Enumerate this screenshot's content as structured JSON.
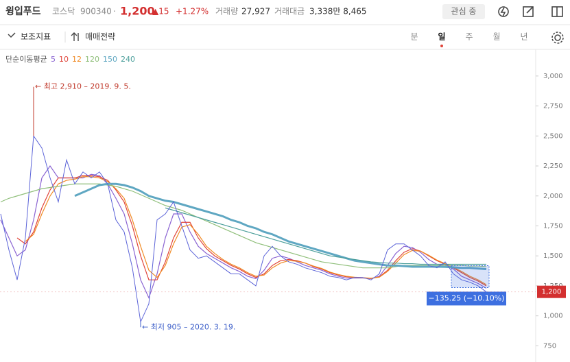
{
  "header": {
    "name": "윙입푸드",
    "market": "코스닥",
    "code": "900340",
    "sep": "·",
    "price": "1,200",
    "change": "▲15",
    "change_pct": "+1.27%",
    "volume_label": "거래량",
    "volume": "27,927",
    "amount_label": "거래대금",
    "amount": "3,338만 8,465",
    "watch_button": "관심 중"
  },
  "toolbar": {
    "indicators": "보조지표",
    "strategy": "매매전략",
    "periods": [
      "분",
      "일",
      "주",
      "월",
      "년"
    ],
    "selected_period": 1
  },
  "chart_data": {
    "type": "line",
    "legend_title": "단순이동평균",
    "categories": [
      null,
      null,
      null,
      null,
      null,
      null,
      null,
      null,
      null,
      null,
      null,
      null,
      null,
      null,
      null,
      null,
      null,
      null,
      null,
      null,
      null,
      null,
      null,
      null,
      null,
      null,
      null,
      null,
      null,
      null,
      null,
      null,
      null,
      null,
      null,
      null,
      null,
      null,
      null,
      null,
      null,
      null,
      null,
      null,
      null,
      null,
      null,
      null,
      null,
      null,
      null,
      null,
      null,
      null,
      null,
      null,
      null,
      null,
      null,
      null
    ],
    "values": [
      1850,
      1550,
      1300,
      1650,
      2500,
      2400,
      2150,
      1950,
      2300,
      2100,
      2200,
      2150,
      2200,
      2100,
      1800,
      1700,
      1400,
      950,
      1100,
      1800,
      1850,
      1950,
      1750,
      1550,
      1480,
      1500,
      1450,
      1400,
      1350,
      1350,
      1300,
      1250,
      1500,
      1580,
      1500,
      1450,
      1430,
      1400,
      1380,
      1360,
      1330,
      1320,
      1300,
      1320,
      1320,
      1300,
      1350,
      1550,
      1600,
      1600,
      1550,
      1500,
      1420,
      1400,
      1450,
      1350,
      1300,
      1280,
      1250,
      1200
    ],
    "color": "#5b63d8",
    "series": [
      {
        "name": "5",
        "color": "#8a63d2",
        "values": [
          1800,
          1650,
          1500,
          1550,
          1800,
          2150,
          2250,
          2150,
          2150,
          2150,
          2150,
          2180,
          2170,
          2100,
          1980,
          1850,
          1600,
          1300,
          1150,
          1350,
          1650,
          1850,
          1850,
          1700,
          1580,
          1520,
          1480,
          1440,
          1400,
          1370,
          1330,
          1310,
          1380,
          1480,
          1500,
          1480,
          1450,
          1420,
          1400,
          1380,
          1350,
          1330,
          1315,
          1315,
          1315,
          1310,
          1330,
          1420,
          1520,
          1580,
          1570,
          1530,
          1470,
          1430,
          1420,
          1390,
          1330,
          1300,
          1270,
          1230
        ]
      },
      {
        "name": "10",
        "color": "#e0443a",
        "values": [
          null,
          null,
          1650,
          1600,
          1700,
          1900,
          2050,
          2150,
          2150,
          2150,
          2170,
          2170,
          2160,
          2130,
          2050,
          1950,
          1750,
          1500,
          1300,
          1300,
          1450,
          1650,
          1780,
          1780,
          1650,
          1560,
          1500,
          1460,
          1420,
          1390,
          1350,
          1320,
          1350,
          1420,
          1460,
          1470,
          1460,
          1440,
          1410,
          1390,
          1360,
          1340,
          1325,
          1320,
          1318,
          1312,
          1325,
          1380,
          1460,
          1530,
          1560,
          1540,
          1500,
          1460,
          1430,
          1400,
          1360,
          1320,
          1290,
          1250
        ]
      },
      {
        "name": "12",
        "color": "#f08a24",
        "values": [
          null,
          null,
          null,
          1620,
          1680,
          1850,
          2000,
          2100,
          2130,
          2140,
          2160,
          2160,
          2150,
          2120,
          2060,
          1980,
          1800,
          1580,
          1380,
          1320,
          1420,
          1600,
          1740,
          1760,
          1680,
          1580,
          1520,
          1470,
          1430,
          1400,
          1360,
          1330,
          1340,
          1400,
          1440,
          1460,
          1455,
          1440,
          1415,
          1395,
          1365,
          1345,
          1330,
          1322,
          1318,
          1314,
          1322,
          1370,
          1440,
          1510,
          1545,
          1540,
          1505,
          1465,
          1435,
          1405,
          1370,
          1330,
          1300,
          1260
        ]
      },
      {
        "name": "120",
        "color": "#8fbf7a",
        "values": [
          1950,
          1980,
          2000,
          2020,
          2040,
          2060,
          2070,
          2080,
          2090,
          2100,
          2100,
          2100,
          2100,
          2090,
          2080,
          2060,
          2040,
          2010,
          1980,
          1950,
          1920,
          1900,
          1880,
          1850,
          1820,
          1790,
          1760,
          1730,
          1700,
          1670,
          1640,
          1610,
          1590,
          1570,
          1550,
          1530,
          1510,
          1490,
          1470,
          1450,
          1440,
          1430,
          1420,
          1410,
          1400,
          1400,
          1400,
          1400,
          1410,
          1420,
          1420,
          1420,
          1420,
          1420,
          1420,
          1420,
          1420,
          1415,
          1415,
          1410
        ]
      },
      {
        "name": "150",
        "color": "#5fa7c2",
        "values": [
          null,
          null,
          null,
          null,
          null,
          null,
          null,
          null,
          null,
          2000,
          2030,
          2060,
          2090,
          2100,
          2100,
          2090,
          2070,
          2040,
          2000,
          1980,
          1960,
          1950,
          1930,
          1910,
          1890,
          1870,
          1850,
          1830,
          1800,
          1780,
          1750,
          1730,
          1700,
          1680,
          1650,
          1620,
          1600,
          1580,
          1560,
          1540,
          1520,
          1500,
          1480,
          1460,
          1450,
          1440,
          1430,
          1420,
          1420,
          1415,
          1410,
          1410,
          1410,
          1410,
          1408,
          1405,
          1400,
          1400,
          1395,
          1390
        ]
      },
      {
        "name": "240",
        "color": "#4a9e9a",
        "values": [
          null,
          null,
          null,
          null,
          null,
          null,
          null,
          null,
          null,
          null,
          null,
          null,
          null,
          null,
          null,
          null,
          null,
          null,
          null,
          null,
          1900,
          1880,
          1860,
          1840,
          1820,
          1800,
          1780,
          1760,
          1740,
          1720,
          1700,
          1680,
          1660,
          1640,
          1620,
          1600,
          1580,
          1560,
          1540,
          1520,
          1500,
          1490,
          1480,
          1470,
          1460,
          1450,
          1445,
          1440,
          1440,
          1435,
          1435,
          1430,
          1430,
          1430,
          1430,
          1430,
          1430,
          1430,
          1430,
          1430
        ]
      }
    ],
    "ylim": [
      615,
      3205
    ],
    "yticks": [
      750,
      {
        "value": 1000,
        "label": "1,000"
      },
      {
        "value": 1250,
        "label": "1,250"
      },
      {
        "value": 1500,
        "label": "1,500"
      },
      {
        "value": 1750,
        "label": "1,750"
      },
      {
        "value": 2000,
        "label": "2,000"
      },
      {
        "value": 2250,
        "label": "2,250"
      },
      {
        "value": 2500,
        "label": "2,500"
      },
      {
        "value": 2750,
        "label": "2,750"
      },
      {
        "value": 3000,
        "label": "3,000"
      }
    ],
    "annotations": [
      {
        "value": 2910,
        "index": 4,
        "label": "← 최고 2,910 – 2019. 9. 5.",
        "color": "#c0392b"
      },
      {
        "value": 905,
        "index": 17,
        "label": "← 최저 905 – 2020. 3. 19.",
        "color": "#3d5fc9"
      }
    ],
    "current": {
      "value": 1200,
      "color": "#d32f2f"
    },
    "measure": {
      "label": "−135.25 (−10.10%)",
      "color": "#3d6fe0"
    }
  }
}
